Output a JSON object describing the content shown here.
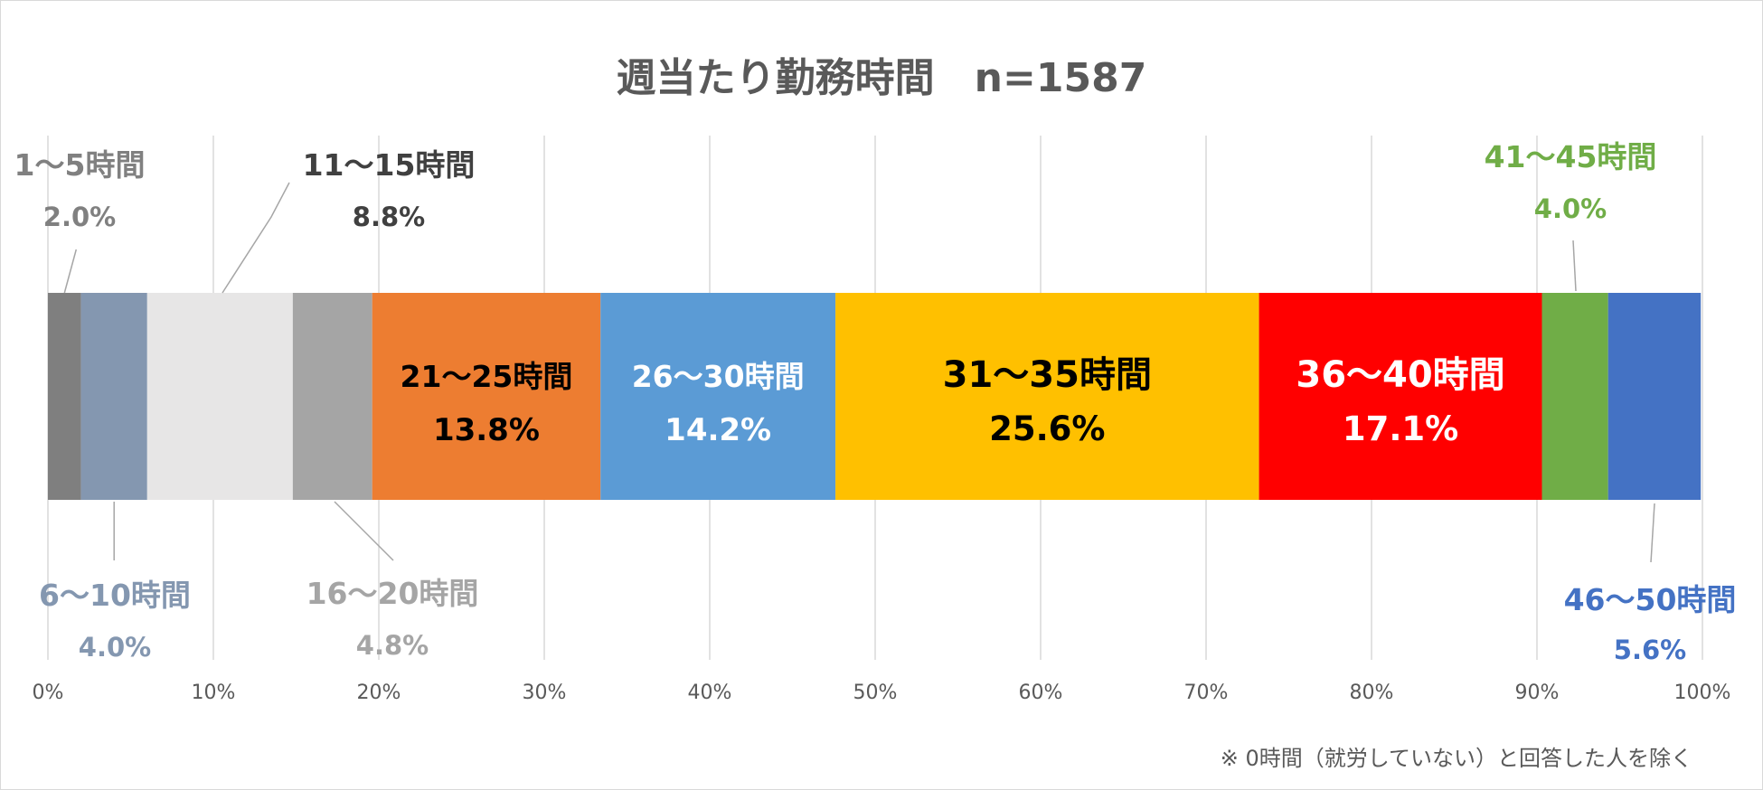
{
  "chart_data": {
    "type": "stacked-bar",
    "title": "週当たり勤務時間　n=1587",
    "footnote": "※ 0時間（就労していない）と回答した人を除く",
    "xlim": [
      0,
      100
    ],
    "x_tick_labels": [
      "0%",
      "10%",
      "20%",
      "30%",
      "40%",
      "50%",
      "60%",
      "70%",
      "80%",
      "90%",
      "100%"
    ],
    "grid": true,
    "segments": [
      {
        "label": "1〜5時間",
        "value": 2.0,
        "value_label": "2.0%",
        "color": "#7f7f7f",
        "label_color": "#808080"
      },
      {
        "label": "6〜10時間",
        "value": 4.0,
        "value_label": "4.0%",
        "color": "#8497b0",
        "label_color": "#8497b0"
      },
      {
        "label": "11〜15時間",
        "value": 8.8,
        "value_label": "8.8%",
        "color": "#e7e6e6",
        "label_color": "#404040"
      },
      {
        "label": "16〜20時間",
        "value": 4.8,
        "value_label": "4.8%",
        "color": "#a5a5a5",
        "label_color": "#a5a5a5"
      },
      {
        "label": "21〜25時間",
        "value": 13.8,
        "value_label": "13.8%",
        "color": "#ed7d31",
        "label_color": "#000000"
      },
      {
        "label": "26〜30時間",
        "value": 14.2,
        "value_label": "14.2%",
        "color": "#5b9bd5",
        "label_color": "#ffffff"
      },
      {
        "label": "31〜35時間",
        "value": 25.6,
        "value_label": "25.6%",
        "color": "#ffc000",
        "label_color": "#000000"
      },
      {
        "label": "36〜40時間",
        "value": 17.1,
        "value_label": "17.1%",
        "color": "#ff0000",
        "label_color": "#ffffff"
      },
      {
        "label": "41〜45時間",
        "value": 4.0,
        "value_label": "4.0%",
        "color": "#70ad47",
        "label_color": "#70ad47"
      },
      {
        "label": "46〜50時間",
        "value": 5.6,
        "value_label": "5.6%",
        "color": "#4472c4",
        "label_color": "#4472c4"
      }
    ]
  }
}
